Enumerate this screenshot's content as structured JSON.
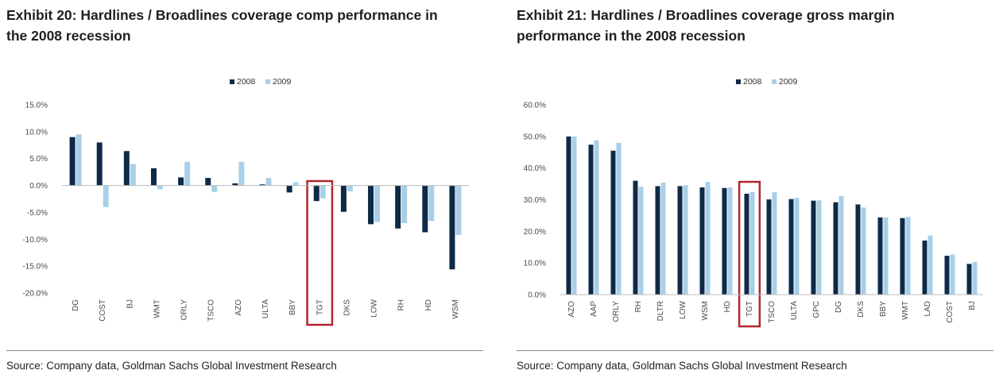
{
  "colors": {
    "s2008": "#0e2a47",
    "s2009": "#a9cfe8",
    "highlight": "#b2262a",
    "axis": "#bdbdbd"
  },
  "charts": [
    {
      "title_line1": "Exhibit 20: Hardlines / Broadlines coverage comp performance in",
      "title_line2": "the 2008 recession",
      "source": "Source: Company data, Goldman Sachs Global Investment Research"
    },
    {
      "title_line1": "Exhibit 21: Hardlines / Broadlines coverage gross margin",
      "title_line2": "performance in the 2008 recession",
      "source": "Source: Company data, Goldman Sachs Global Investment Research"
    }
  ],
  "chart_data": [
    {
      "type": "bar",
      "title": "Exhibit 20: Hardlines / Broadlines coverage comp performance in the 2008 recession",
      "categories": [
        "DG",
        "COST",
        "BJ",
        "WMT",
        "ORLY",
        "TSCO",
        "AZO",
        "ULTA",
        "BBY",
        "TGT",
        "DKS",
        "LOW",
        "RH",
        "HD",
        "WSM"
      ],
      "series": [
        {
          "name": "2008",
          "values": [
            9.0,
            8.0,
            6.4,
            3.2,
            1.5,
            1.4,
            0.4,
            0.2,
            -1.3,
            -2.9,
            -4.9,
            -7.2,
            -8.0,
            -8.7,
            -15.6
          ]
        },
        {
          "name": "2009",
          "values": [
            9.5,
            -4.0,
            4.0,
            -0.7,
            4.4,
            -1.2,
            4.4,
            1.4,
            0.6,
            -2.4,
            -1.1,
            -6.8,
            -7.0,
            -6.6,
            -9.2
          ]
        }
      ],
      "yticks": [
        15,
        10,
        5,
        0,
        -5,
        -10,
        -15,
        -20
      ],
      "ytick_labels": [
        "15.0%",
        "10.0%",
        "5.0%",
        "0.0%",
        "-5.0%",
        "-10.0%",
        "-15.0%",
        "-20.0%"
      ],
      "ylim": [
        -20,
        15
      ],
      "legend": [
        "2008",
        "2009"
      ],
      "legend_position": "top-center",
      "highlight": "TGT",
      "grid": false
    },
    {
      "type": "bar",
      "title": "Exhibit 21: Hardlines / Broadlines coverage gross margin performance in the 2008 recession",
      "categories": [
        "AZO",
        "AAP",
        "ORLY",
        "RH",
        "DLTR",
        "LOW",
        "WSM",
        "HD",
        "TGT",
        "TSCO",
        "ULTA",
        "GPC",
        "DG",
        "DKS",
        "BBY",
        "WMT",
        "LAD",
        "COST",
        "BJ"
      ],
      "series": [
        {
          "name": "2008",
          "values": [
            50.0,
            47.4,
            45.5,
            36.0,
            34.3,
            34.3,
            33.9,
            33.7,
            31.9,
            30.1,
            30.2,
            29.7,
            29.2,
            28.5,
            24.4,
            24.2,
            17.1,
            12.3,
            9.7
          ]
        },
        {
          "name": "2009",
          "values": [
            50.0,
            48.8,
            48.0,
            34.1,
            35.4,
            34.6,
            35.6,
            33.9,
            32.4,
            32.4,
            30.6,
            29.8,
            31.2,
            27.5,
            24.4,
            24.6,
            18.7,
            12.7,
            10.3
          ]
        }
      ],
      "yticks": [
        60,
        50,
        40,
        30,
        20,
        10,
        0
      ],
      "ytick_labels": [
        "60.0%",
        "50.0%",
        "40.0%",
        "30.0%",
        "20.0%",
        "10.0%",
        "0.0%"
      ],
      "ylim": [
        0,
        60
      ],
      "legend": [
        "2008",
        "2009"
      ],
      "legend_position": "top-center",
      "highlight": "TGT",
      "grid": false
    }
  ]
}
